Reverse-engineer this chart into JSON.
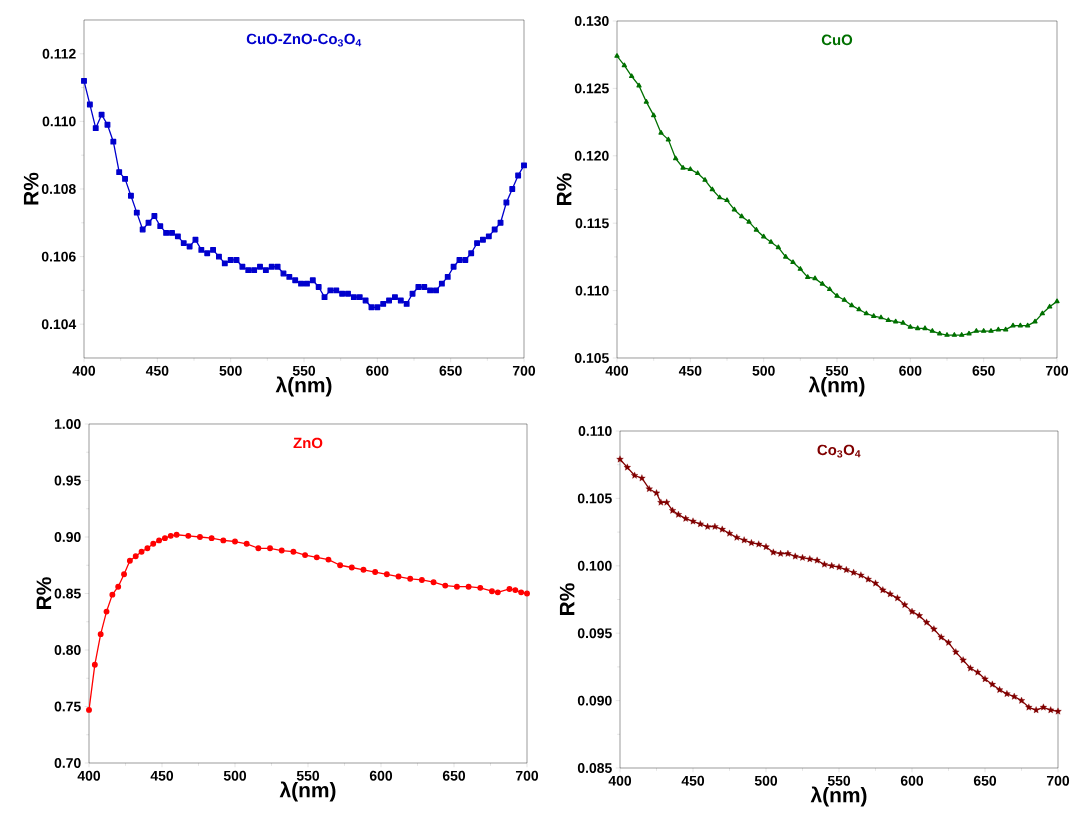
{
  "chart_data": [
    {
      "type": "line",
      "title": "CuO-ZnO-Co$_{3}$O$_{4}$",
      "xlabel": "λ(nm)",
      "ylabel": "R%",
      "marker": "square",
      "line_style": "solid",
      "xlim": [
        400,
        700
      ],
      "ylim": [
        0.103,
        0.113
      ],
      "xticks": [
        400,
        450,
        500,
        550,
        600,
        650,
        700
      ],
      "yticks": [
        {
          "value": 0.104,
          "label": "0.104"
        },
        {
          "value": 0.106,
          "label": "0.106"
        },
        {
          "value": 0.108,
          "label": "0.108"
        },
        {
          "value": 0.11,
          "label": "0.110"
        },
        {
          "value": 0.112,
          "label": "0.112"
        }
      ],
      "x": [
        400,
        404,
        408,
        412,
        416,
        420,
        424,
        428,
        432,
        436,
        440,
        444,
        448,
        452,
        456,
        460,
        464,
        468,
        472,
        476,
        480,
        484,
        488,
        492,
        496,
        500,
        504,
        508,
        512,
        516,
        520,
        524,
        528,
        532,
        536,
        540,
        544,
        548,
        552,
        556,
        560,
        564,
        568,
        572,
        576,
        580,
        584,
        588,
        592,
        596,
        600,
        604,
        608,
        612,
        616,
        620,
        624,
        628,
        632,
        636,
        640,
        644,
        648,
        652,
        656,
        660,
        664,
        668,
        672,
        676,
        680,
        684,
        688,
        692,
        696,
        700
      ],
      "series": [
        {
          "color": "#0000cd",
          "values": [
            0.1112,
            0.1105,
            0.1098,
            0.1102,
            0.1099,
            0.1094,
            0.1085,
            0.1083,
            0.1078,
            0.1073,
            0.1068,
            0.107,
            0.1072,
            0.1069,
            0.1067,
            0.1067,
            0.1066,
            0.1064,
            0.1063,
            0.1065,
            0.1062,
            0.1061,
            0.1062,
            0.106,
            0.1058,
            0.1059,
            0.1059,
            0.1057,
            0.1056,
            0.1056,
            0.1057,
            0.1056,
            0.1057,
            0.1057,
            0.1055,
            0.1054,
            0.1053,
            0.1052,
            0.1052,
            0.1053,
            0.1051,
            0.1048,
            0.105,
            0.105,
            0.1049,
            0.1049,
            0.1048,
            0.1048,
            0.1047,
            0.1045,
            0.1045,
            0.1046,
            0.1047,
            0.1048,
            0.1047,
            0.1046,
            0.1049,
            0.1051,
            0.1051,
            0.105,
            0.105,
            0.1052,
            0.1054,
            0.1057,
            0.1059,
            0.1059,
            0.1061,
            0.1064,
            0.1065,
            0.1066,
            0.1068,
            0.107,
            0.1076,
            0.108,
            0.1084,
            0.1087
          ]
        }
      ]
    },
    {
      "type": "line",
      "title": "CuO",
      "xlabel": "λ(nm)",
      "ylabel": "R%",
      "marker": "triangle",
      "line_style": "solid",
      "xlim": [
        400,
        700
      ],
      "ylim": [
        0.105,
        0.13
      ],
      "xticks": [
        400,
        450,
        500,
        550,
        600,
        650,
        700
      ],
      "yticks": [
        {
          "value": 0.105,
          "label": "0.105"
        },
        {
          "value": 0.11,
          "label": "0.110"
        },
        {
          "value": 0.115,
          "label": "0.115"
        },
        {
          "value": 0.12,
          "label": "0.120"
        },
        {
          "value": 0.125,
          "label": "0.125"
        },
        {
          "value": 0.13,
          "label": "0.130"
        }
      ],
      "x": [
        400,
        405,
        410,
        415,
        420,
        425,
        430,
        435,
        440,
        445,
        450,
        455,
        460,
        465,
        470,
        475,
        480,
        485,
        490,
        495,
        500,
        505,
        510,
        515,
        520,
        525,
        530,
        535,
        540,
        545,
        550,
        555,
        560,
        565,
        570,
        575,
        580,
        585,
        590,
        595,
        600,
        605,
        610,
        615,
        620,
        625,
        630,
        635,
        640,
        645,
        650,
        655,
        660,
        665,
        670,
        675,
        680,
        685,
        690,
        695,
        700
      ],
      "series": [
        {
          "color": "#007000",
          "values": [
            0.1274,
            0.1267,
            0.1259,
            0.1252,
            0.124,
            0.123,
            0.1217,
            0.1212,
            0.1198,
            0.1191,
            0.119,
            0.1187,
            0.1182,
            0.1175,
            0.1169,
            0.1167,
            0.116,
            0.1155,
            0.1151,
            0.1145,
            0.114,
            0.1136,
            0.1132,
            0.1125,
            0.1121,
            0.1116,
            0.111,
            0.1109,
            0.1105,
            0.1101,
            0.1096,
            0.1093,
            0.1089,
            0.1086,
            0.1083,
            0.1081,
            0.108,
            0.1078,
            0.1077,
            0.1076,
            0.1073,
            0.1072,
            0.1072,
            0.107,
            0.1068,
            0.1067,
            0.1067,
            0.1067,
            0.1068,
            0.107,
            0.107,
            0.107,
            0.1071,
            0.1071,
            0.1074,
            0.1074,
            0.1074,
            0.1077,
            0.1083,
            0.1088,
            0.1092
          ]
        }
      ]
    },
    {
      "type": "line",
      "title": "ZnO",
      "xlabel": "λ(nm)",
      "ylabel": "R%",
      "marker": "circle",
      "line_style": "solid",
      "xlim": [
        400,
        700
      ],
      "ylim": [
        0.7,
        1.0
      ],
      "xticks": [
        400,
        450,
        500,
        550,
        600,
        650,
        700
      ],
      "yticks": [
        {
          "value": 0.7,
          "label": "0.70"
        },
        {
          "value": 0.75,
          "label": "0.75"
        },
        {
          "value": 0.8,
          "label": "0.80"
        },
        {
          "value": 0.85,
          "label": "0.85"
        },
        {
          "value": 0.9,
          "label": "0.90"
        },
        {
          "value": 0.95,
          "label": "0.95"
        },
        {
          "value": 1.0,
          "label": "1.00"
        }
      ],
      "x": [
        400,
        404,
        408,
        412,
        416,
        420,
        424,
        428,
        432,
        436,
        440,
        444,
        448,
        452,
        456,
        460,
        468,
        476,
        484,
        492,
        500,
        508,
        516,
        524,
        532,
        540,
        548,
        556,
        564,
        572,
        580,
        588,
        596,
        604,
        612,
        620,
        628,
        636,
        644,
        652,
        660,
        668,
        676,
        680,
        688,
        692,
        696,
        700
      ],
      "series": [
        {
          "color": "#ff0000",
          "values": [
            0.747,
            0.787,
            0.814,
            0.834,
            0.849,
            0.856,
            0.867,
            0.879,
            0.883,
            0.887,
            0.89,
            0.894,
            0.897,
            0.899,
            0.901,
            0.902,
            0.901,
            0.9,
            0.899,
            0.897,
            0.896,
            0.894,
            0.89,
            0.89,
            0.888,
            0.887,
            0.884,
            0.882,
            0.88,
            0.875,
            0.873,
            0.871,
            0.869,
            0.867,
            0.865,
            0.863,
            0.862,
            0.86,
            0.857,
            0.856,
            0.856,
            0.855,
            0.852,
            0.851,
            0.854,
            0.853,
            0.851,
            0.85
          ]
        }
      ]
    },
    {
      "type": "line",
      "title": "Co$_{3}$O$_{4}$",
      "xlabel": "λ(nm)",
      "ylabel": "R%",
      "marker": "star",
      "line_style": "solid",
      "xlim": [
        400,
        700
      ],
      "ylim": [
        0.085,
        0.11
      ],
      "xticks": [
        400,
        450,
        500,
        550,
        600,
        650,
        700
      ],
      "yticks": [
        {
          "value": 0.085,
          "label": "0.085"
        },
        {
          "value": 0.09,
          "label": "0.090"
        },
        {
          "value": 0.095,
          "label": "0.095"
        },
        {
          "value": 0.1,
          "label": "0.100"
        },
        {
          "value": 0.105,
          "label": "0.105"
        },
        {
          "value": 0.11,
          "label": "0.110"
        }
      ],
      "x": [
        400,
        405,
        410,
        415,
        420,
        425,
        428,
        432,
        436,
        440,
        445,
        450,
        455,
        460,
        465,
        470,
        475,
        480,
        485,
        490,
        495,
        500,
        505,
        510,
        515,
        520,
        525,
        530,
        535,
        540,
        545,
        550,
        555,
        560,
        565,
        570,
        575,
        580,
        585,
        590,
        595,
        600,
        605,
        610,
        615,
        620,
        625,
        630,
        635,
        640,
        645,
        650,
        655,
        660,
        665,
        670,
        675,
        680,
        685,
        690,
        695,
        700
      ],
      "series": [
        {
          "color": "#800000",
          "values": [
            0.1079,
            0.1073,
            0.1067,
            0.1065,
            0.1057,
            0.1054,
            0.1047,
            0.1047,
            0.1041,
            0.1038,
            0.1035,
            0.1033,
            0.1031,
            0.1029,
            0.1029,
            0.1027,
            0.1024,
            0.1021,
            0.1019,
            0.1017,
            0.1016,
            0.1014,
            0.101,
            0.1009,
            0.1009,
            0.1007,
            0.1006,
            0.1005,
            0.1004,
            0.1001,
            0.1,
            0.0999,
            0.0997,
            0.0995,
            0.0993,
            0.099,
            0.0987,
            0.0982,
            0.0979,
            0.0976,
            0.0971,
            0.0966,
            0.0963,
            0.0958,
            0.0953,
            0.0947,
            0.0943,
            0.0936,
            0.093,
            0.0924,
            0.0921,
            0.0916,
            0.0912,
            0.0908,
            0.0905,
            0.0903,
            0.09,
            0.0895,
            0.0893,
            0.0895,
            0.0893,
            0.0892
          ]
        }
      ]
    }
  ]
}
